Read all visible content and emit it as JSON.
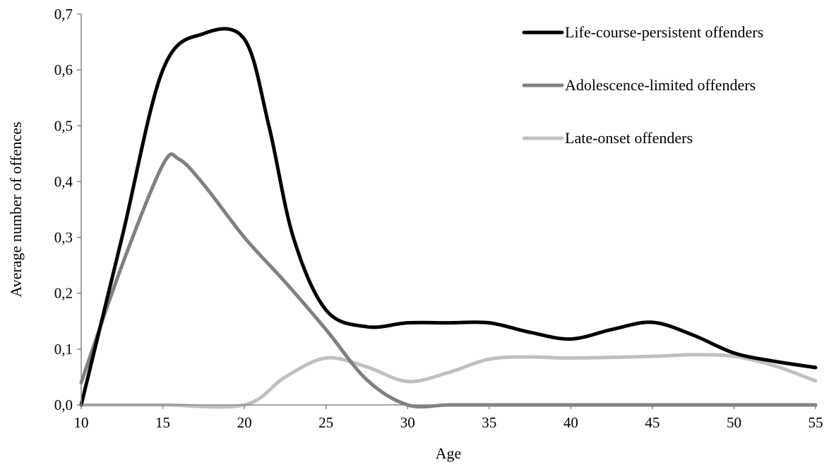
{
  "chart_data": {
    "type": "line",
    "title": "",
    "xlabel": "Age",
    "ylabel": "Average number of offences",
    "xlim": [
      10,
      55
    ],
    "ylim": [
      0,
      0.7
    ],
    "x_ticks": [
      10,
      15,
      20,
      25,
      30,
      35,
      40,
      45,
      50,
      55
    ],
    "x_tick_labels": [
      "10",
      "15",
      "20",
      "25",
      "30",
      "35",
      "40",
      "45",
      "50",
      "55"
    ],
    "y_ticks": [
      0,
      0.1,
      0.2,
      0.3,
      0.4,
      0.5,
      0.6,
      0.7
    ],
    "y_tick_labels": [
      "0,0",
      "0,1",
      "0,2",
      "0,3",
      "0,4",
      "0,5",
      "0,6",
      "0,7"
    ],
    "grid": false,
    "legend_position": "top-right",
    "series": [
      {
        "name": "Life-course-persistent offenders",
        "color": "#000000",
        "x": [
          10,
          12.5,
          15,
          17.5,
          20,
          21.5,
          23,
          25,
          27.5,
          30,
          32.5,
          35,
          37.5,
          40,
          42.5,
          45,
          47.5,
          50,
          52.5,
          55
        ],
        "y": [
          0.0,
          0.3,
          0.6,
          0.665,
          0.655,
          0.5,
          0.3,
          0.17,
          0.14,
          0.147,
          0.147,
          0.147,
          0.13,
          0.118,
          0.135,
          0.148,
          0.125,
          0.093,
          0.078,
          0.067
        ]
      },
      {
        "name": "Adolescence-limited offenders",
        "color": "#808080",
        "x": [
          10,
          12.5,
          15,
          16,
          17.5,
          20,
          22.5,
          25,
          27.5,
          30,
          32.5,
          35,
          40,
          45,
          50,
          55
        ],
        "y": [
          0.04,
          0.25,
          0.43,
          0.44,
          0.395,
          0.3,
          0.22,
          0.135,
          0.045,
          0.0,
          0.0,
          0.0,
          0.0,
          0.0,
          0.0,
          0.0
        ]
      },
      {
        "name": "Late-onset offenders",
        "color": "#c0c0c0",
        "x": [
          10,
          15,
          20,
          22.5,
          25,
          27.5,
          30,
          32.5,
          35,
          37.5,
          40,
          45,
          47.5,
          50,
          52.5,
          55
        ],
        "y": [
          0.0,
          0.0,
          0.0,
          0.05,
          0.084,
          0.068,
          0.042,
          0.058,
          0.082,
          0.086,
          0.084,
          0.087,
          0.09,
          0.087,
          0.07,
          0.043
        ]
      }
    ]
  }
}
